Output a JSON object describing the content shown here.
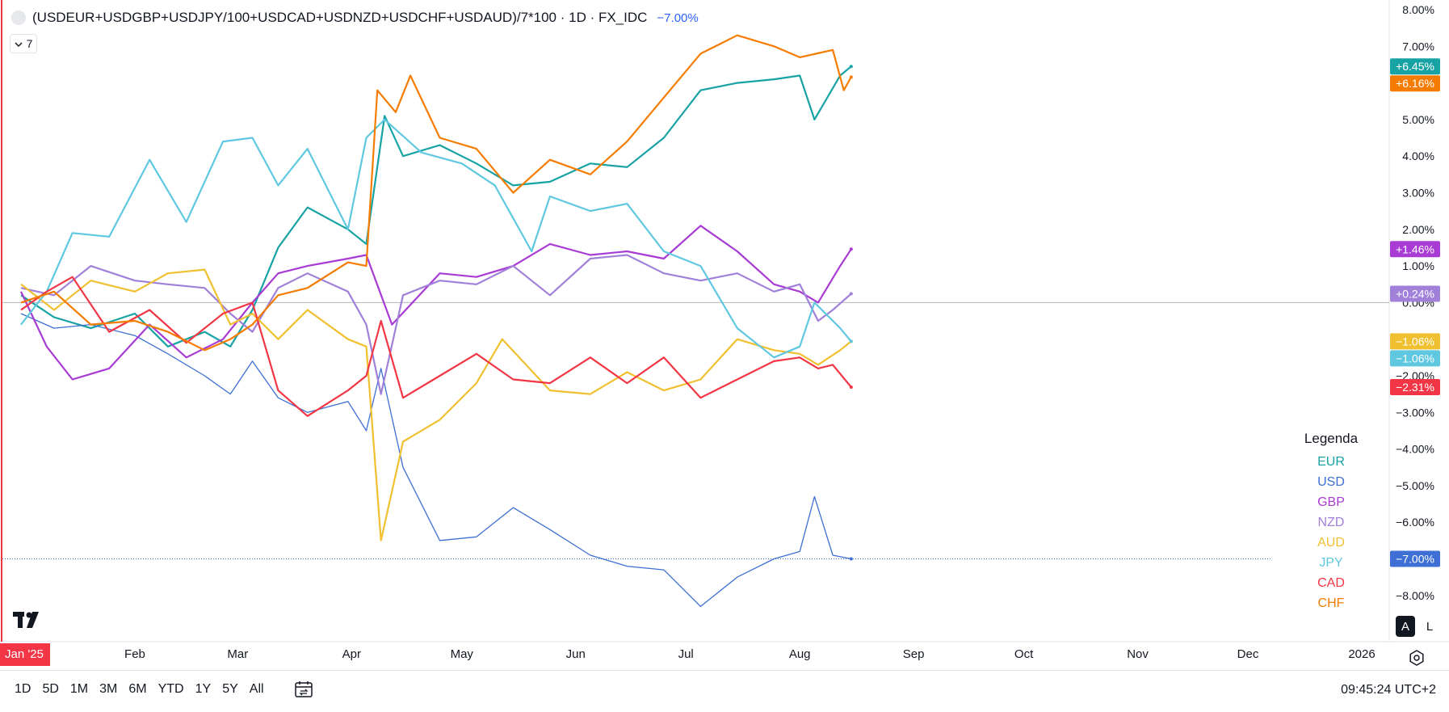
{
  "header": {
    "symbol": "(USDEUR+USDGBP+USDJPY/100+USDCAD+USDNZD+USDCHF+USDAUD)/7*100 · 1D · FX_IDC",
    "change": "−7.00%",
    "collapse_count": "7"
  },
  "legend": {
    "title": "Legenda",
    "items": [
      {
        "label": "EUR",
        "color": "#17a2a4"
      },
      {
        "label": "USD",
        "color": "#3d6fd4"
      },
      {
        "label": "GBP",
        "color": "#a83bd4"
      },
      {
        "label": "NZD",
        "color": "#a080d8"
      },
      {
        "label": "AUD",
        "color": "#f0c030"
      },
      {
        "label": "JPY",
        "color": "#5fc8e0"
      },
      {
        "label": "CAD",
        "color": "#f23645"
      },
      {
        "label": "CHF",
        "color": "#f57c00"
      }
    ]
  },
  "time_ranges": [
    "1D",
    "5D",
    "1M",
    "3M",
    "6M",
    "YTD",
    "1Y",
    "5Y",
    "All"
  ],
  "clock": "09:45:24 UTC+2",
  "scale_buttons": {
    "auto": "A",
    "log": "L"
  },
  "chart_data": {
    "type": "line",
    "x_domain": [
      "2025-01-01",
      "2026-01-01"
    ],
    "ylim": [
      -9,
      8
    ],
    "y_unit": "%",
    "y_ticks": [
      8,
      7,
      6,
      5,
      4,
      3,
      2,
      1,
      0,
      -1,
      -2,
      -3,
      -4,
      -5,
      -6,
      -7,
      -8
    ],
    "y_tick_labels": [
      "8.00%",
      "7.00%",
      "6.00%",
      "5.00%",
      "4.00%",
      "3.00%",
      "2.00%",
      "1.00%",
      "0.00%",
      "−1.00%",
      "−2.00%",
      "−3.00%",
      "−4.00%",
      "−5.00%",
      "−6.00%",
      "−7.00%",
      "−8.00%"
    ],
    "x_ticks": [
      {
        "label": "Jan '25",
        "date": "2025-01-01",
        "highlight": true
      },
      {
        "label": "Feb",
        "date": "2025-02-01"
      },
      {
        "label": "Mar",
        "date": "2025-03-01"
      },
      {
        "label": "Apr",
        "date": "2025-04-01"
      },
      {
        "label": "May",
        "date": "2025-05-01"
      },
      {
        "label": "Jun",
        "date": "2025-06-01"
      },
      {
        "label": "Jul",
        "date": "2025-07-01"
      },
      {
        "label": "Aug",
        "date": "2025-08-01"
      },
      {
        "label": "Sep",
        "date": "2025-09-01"
      },
      {
        "label": "Oct",
        "date": "2025-10-01"
      },
      {
        "label": "Nov",
        "date": "2025-11-01"
      },
      {
        "label": "Dec",
        "date": "2025-12-01"
      },
      {
        "label": "2026",
        "date": "2026-01-01"
      }
    ],
    "zero_line": 0,
    "last_value_line": -7.0,
    "series": [
      {
        "name": "EUR",
        "color": "#17a2a4",
        "last_label": "+6.45%",
        "last": 6.45,
        "points": [
          [
            "2025-01-01",
            0.2
          ],
          [
            "2025-01-10",
            -0.4
          ],
          [
            "2025-01-20",
            -0.7
          ],
          [
            "2025-02-01",
            -0.3
          ],
          [
            "2025-02-10",
            -1.2
          ],
          [
            "2025-02-20",
            -0.8
          ],
          [
            "2025-02-27",
            -1.2
          ],
          [
            "2025-03-05",
            -0.2
          ],
          [
            "2025-03-12",
            1.5
          ],
          [
            "2025-03-20",
            2.6
          ],
          [
            "2025-03-31",
            2.0
          ],
          [
            "2025-04-05",
            1.6
          ],
          [
            "2025-04-10",
            5.1
          ],
          [
            "2025-04-15",
            4.0
          ],
          [
            "2025-04-25",
            4.3
          ],
          [
            "2025-05-05",
            3.8
          ],
          [
            "2025-05-15",
            3.2
          ],
          [
            "2025-05-25",
            3.3
          ],
          [
            "2025-06-05",
            3.8
          ],
          [
            "2025-06-15",
            3.7
          ],
          [
            "2025-06-25",
            4.5
          ],
          [
            "2025-07-05",
            5.8
          ],
          [
            "2025-07-15",
            6.0
          ],
          [
            "2025-07-25",
            6.1
          ],
          [
            "2025-08-01",
            6.2
          ],
          [
            "2025-08-05",
            5.0
          ],
          [
            "2025-08-12",
            6.2
          ],
          [
            "2025-08-15",
            6.45
          ]
        ]
      },
      {
        "name": "USD",
        "color": "#3d6fd4",
        "last_label": "−7.00%",
        "last": -7.0,
        "points": [
          [
            "2025-01-01",
            -0.3
          ],
          [
            "2025-01-10",
            -0.7
          ],
          [
            "2025-01-20",
            -0.6
          ],
          [
            "2025-02-01",
            -0.9
          ],
          [
            "2025-02-10",
            -1.4
          ],
          [
            "2025-02-20",
            -2.0
          ],
          [
            "2025-02-27",
            -2.5
          ],
          [
            "2025-03-05",
            -1.6
          ],
          [
            "2025-03-12",
            -2.6
          ],
          [
            "2025-03-20",
            -3.0
          ],
          [
            "2025-03-31",
            -2.7
          ],
          [
            "2025-04-05",
            -3.5
          ],
          [
            "2025-04-09",
            -1.8
          ],
          [
            "2025-04-15",
            -4.5
          ],
          [
            "2025-04-25",
            -6.5
          ],
          [
            "2025-05-05",
            -6.4
          ],
          [
            "2025-05-15",
            -5.6
          ],
          [
            "2025-05-25",
            -6.2
          ],
          [
            "2025-06-05",
            -6.9
          ],
          [
            "2025-06-15",
            -7.2
          ],
          [
            "2025-06-25",
            -7.3
          ],
          [
            "2025-07-05",
            -8.3
          ],
          [
            "2025-07-15",
            -7.5
          ],
          [
            "2025-07-25",
            -7.0
          ],
          [
            "2025-08-01",
            -6.8
          ],
          [
            "2025-08-05",
            -5.3
          ],
          [
            "2025-08-10",
            -6.9
          ],
          [
            "2025-08-15",
            -7.0
          ]
        ]
      },
      {
        "name": "GBP",
        "color": "#a83bd4",
        "last_label": "+1.46%",
        "last": 1.46,
        "points": [
          [
            "2025-01-01",
            0.3
          ],
          [
            "2025-01-08",
            -1.2
          ],
          [
            "2025-01-15",
            -2.1
          ],
          [
            "2025-01-25",
            -1.8
          ],
          [
            "2025-02-05",
            -0.6
          ],
          [
            "2025-02-15",
            -1.5
          ],
          [
            "2025-02-25",
            -1.0
          ],
          [
            "2025-03-05",
            0.0
          ],
          [
            "2025-03-12",
            0.8
          ],
          [
            "2025-03-20",
            1.0
          ],
          [
            "2025-03-31",
            1.2
          ],
          [
            "2025-04-05",
            1.3
          ],
          [
            "2025-04-12",
            -0.6
          ],
          [
            "2025-04-25",
            0.8
          ],
          [
            "2025-05-05",
            0.7
          ],
          [
            "2025-05-15",
            1.0
          ],
          [
            "2025-05-25",
            1.6
          ],
          [
            "2025-06-05",
            1.3
          ],
          [
            "2025-06-15",
            1.4
          ],
          [
            "2025-06-25",
            1.2
          ],
          [
            "2025-07-05",
            2.1
          ],
          [
            "2025-07-15",
            1.4
          ],
          [
            "2025-07-25",
            0.5
          ],
          [
            "2025-08-01",
            0.3
          ],
          [
            "2025-08-06",
            0.0
          ],
          [
            "2025-08-12",
            1.0
          ],
          [
            "2025-08-15",
            1.46
          ]
        ]
      },
      {
        "name": "NZD",
        "color": "#a080d8",
        "last_label": "+0.24%",
        "last": 0.24,
        "points": [
          [
            "2025-01-01",
            0.4
          ],
          [
            "2025-01-10",
            0.2
          ],
          [
            "2025-01-20",
            1.0
          ],
          [
            "2025-02-01",
            0.6
          ],
          [
            "2025-02-10",
            0.5
          ],
          [
            "2025-02-20",
            0.4
          ],
          [
            "2025-02-27",
            -0.3
          ],
          [
            "2025-03-05",
            -0.8
          ],
          [
            "2025-03-12",
            0.4
          ],
          [
            "2025-03-20",
            0.8
          ],
          [
            "2025-03-31",
            0.3
          ],
          [
            "2025-04-05",
            -0.6
          ],
          [
            "2025-04-09",
            -2.5
          ],
          [
            "2025-04-15",
            0.2
          ],
          [
            "2025-04-25",
            0.6
          ],
          [
            "2025-05-05",
            0.5
          ],
          [
            "2025-05-15",
            1.0
          ],
          [
            "2025-05-25",
            0.2
          ],
          [
            "2025-06-05",
            1.2
          ],
          [
            "2025-06-15",
            1.3
          ],
          [
            "2025-06-25",
            0.8
          ],
          [
            "2025-07-05",
            0.6
          ],
          [
            "2025-07-15",
            0.8
          ],
          [
            "2025-07-25",
            0.3
          ],
          [
            "2025-08-01",
            0.5
          ],
          [
            "2025-08-06",
            -0.5
          ],
          [
            "2025-08-10",
            -0.2
          ],
          [
            "2025-08-15",
            0.24
          ]
        ]
      },
      {
        "name": "AUD",
        "color": "#f0c030",
        "last_label": "−1.06%",
        "last": -1.06,
        "points": [
          [
            "2025-01-01",
            0.5
          ],
          [
            "2025-01-10",
            -0.2
          ],
          [
            "2025-01-20",
            0.6
          ],
          [
            "2025-02-01",
            0.3
          ],
          [
            "2025-02-10",
            0.8
          ],
          [
            "2025-02-20",
            0.9
          ],
          [
            "2025-02-27",
            -0.6
          ],
          [
            "2025-03-05",
            -0.3
          ],
          [
            "2025-03-12",
            -1.0
          ],
          [
            "2025-03-20",
            -0.2
          ],
          [
            "2025-03-31",
            -1.0
          ],
          [
            "2025-04-05",
            -1.2
          ],
          [
            "2025-04-09",
            -6.5
          ],
          [
            "2025-04-15",
            -3.8
          ],
          [
            "2025-04-25",
            -3.2
          ],
          [
            "2025-05-05",
            -2.2
          ],
          [
            "2025-05-12",
            -1.0
          ],
          [
            "2025-05-25",
            -2.4
          ],
          [
            "2025-06-05",
            -2.5
          ],
          [
            "2025-06-15",
            -1.9
          ],
          [
            "2025-06-25",
            -2.4
          ],
          [
            "2025-07-05",
            -2.1
          ],
          [
            "2025-07-15",
            -1.0
          ],
          [
            "2025-07-25",
            -1.3
          ],
          [
            "2025-08-01",
            -1.4
          ],
          [
            "2025-08-06",
            -1.7
          ],
          [
            "2025-08-12",
            -1.3
          ],
          [
            "2025-08-15",
            -1.06
          ]
        ]
      },
      {
        "name": "JPY",
        "color": "#5fc8e0",
        "last_label": "−1.06%",
        "last": -1.06,
        "points": [
          [
            "2025-01-01",
            -0.6
          ],
          [
            "2025-01-08",
            0.3
          ],
          [
            "2025-01-15",
            1.9
          ],
          [
            "2025-01-25",
            1.8
          ],
          [
            "2025-02-05",
            3.9
          ],
          [
            "2025-02-15",
            2.2
          ],
          [
            "2025-02-25",
            4.4
          ],
          [
            "2025-03-05",
            4.5
          ],
          [
            "2025-03-12",
            3.2
          ],
          [
            "2025-03-20",
            4.2
          ],
          [
            "2025-03-31",
            2.0
          ],
          [
            "2025-04-05",
            4.5
          ],
          [
            "2025-04-10",
            5.0
          ],
          [
            "2025-04-20",
            4.1
          ],
          [
            "2025-05-01",
            3.8
          ],
          [
            "2025-05-10",
            3.2
          ],
          [
            "2025-05-20",
            1.4
          ],
          [
            "2025-05-25",
            2.9
          ],
          [
            "2025-06-05",
            2.5
          ],
          [
            "2025-06-15",
            2.7
          ],
          [
            "2025-06-25",
            1.4
          ],
          [
            "2025-07-05",
            1.0
          ],
          [
            "2025-07-15",
            -0.7
          ],
          [
            "2025-07-25",
            -1.5
          ],
          [
            "2025-08-01",
            -1.2
          ],
          [
            "2025-08-05",
            0.0
          ],
          [
            "2025-08-12",
            -0.7
          ],
          [
            "2025-08-15",
            -1.06
          ]
        ]
      },
      {
        "name": "CAD",
        "color": "#f23645",
        "last_label": "−2.31%",
        "last": -2.31,
        "points": [
          [
            "2025-01-01",
            -0.2
          ],
          [
            "2025-01-08",
            0.3
          ],
          [
            "2025-01-15",
            0.7
          ],
          [
            "2025-01-25",
            -0.8
          ],
          [
            "2025-02-05",
            -0.2
          ],
          [
            "2025-02-15",
            -1.1
          ],
          [
            "2025-02-25",
            -0.3
          ],
          [
            "2025-03-05",
            0.0
          ],
          [
            "2025-03-12",
            -2.4
          ],
          [
            "2025-03-20",
            -3.1
          ],
          [
            "2025-03-31",
            -2.4
          ],
          [
            "2025-04-05",
            -2.0
          ],
          [
            "2025-04-09",
            -0.5
          ],
          [
            "2025-04-15",
            -2.6
          ],
          [
            "2025-04-25",
            -2.0
          ],
          [
            "2025-05-05",
            -1.4
          ],
          [
            "2025-05-15",
            -2.1
          ],
          [
            "2025-05-25",
            -2.2
          ],
          [
            "2025-06-05",
            -1.5
          ],
          [
            "2025-06-15",
            -2.2
          ],
          [
            "2025-06-25",
            -1.5
          ],
          [
            "2025-07-05",
            -2.6
          ],
          [
            "2025-07-15",
            -2.1
          ],
          [
            "2025-07-25",
            -1.6
          ],
          [
            "2025-08-01",
            -1.5
          ],
          [
            "2025-08-06",
            -1.8
          ],
          [
            "2025-08-10",
            -1.7
          ],
          [
            "2025-08-15",
            -2.31
          ]
        ]
      },
      {
        "name": "CHF",
        "color": "#f57c00",
        "last_label": "+6.16%",
        "last": 6.16,
        "points": [
          [
            "2025-01-01",
            0.0
          ],
          [
            "2025-01-10",
            0.3
          ],
          [
            "2025-01-20",
            -0.6
          ],
          [
            "2025-02-01",
            -0.5
          ],
          [
            "2025-02-10",
            -0.8
          ],
          [
            "2025-02-20",
            -1.3
          ],
          [
            "2025-02-27",
            -1.0
          ],
          [
            "2025-03-05",
            -0.6
          ],
          [
            "2025-03-12",
            0.2
          ],
          [
            "2025-03-20",
            0.4
          ],
          [
            "2025-03-31",
            1.1
          ],
          [
            "2025-04-05",
            1.0
          ],
          [
            "2025-04-08",
            5.8
          ],
          [
            "2025-04-13",
            5.2
          ],
          [
            "2025-04-17",
            6.2
          ],
          [
            "2025-04-25",
            4.5
          ],
          [
            "2025-05-05",
            4.2
          ],
          [
            "2025-05-15",
            3.0
          ],
          [
            "2025-05-25",
            3.9
          ],
          [
            "2025-06-05",
            3.5
          ],
          [
            "2025-06-15",
            4.4
          ],
          [
            "2025-06-25",
            5.6
          ],
          [
            "2025-07-05",
            6.8
          ],
          [
            "2025-07-15",
            7.3
          ],
          [
            "2025-07-25",
            7.0
          ],
          [
            "2025-08-01",
            6.7
          ],
          [
            "2025-08-10",
            6.9
          ],
          [
            "2025-08-13",
            5.8
          ],
          [
            "2025-08-15",
            6.16
          ]
        ]
      }
    ]
  }
}
